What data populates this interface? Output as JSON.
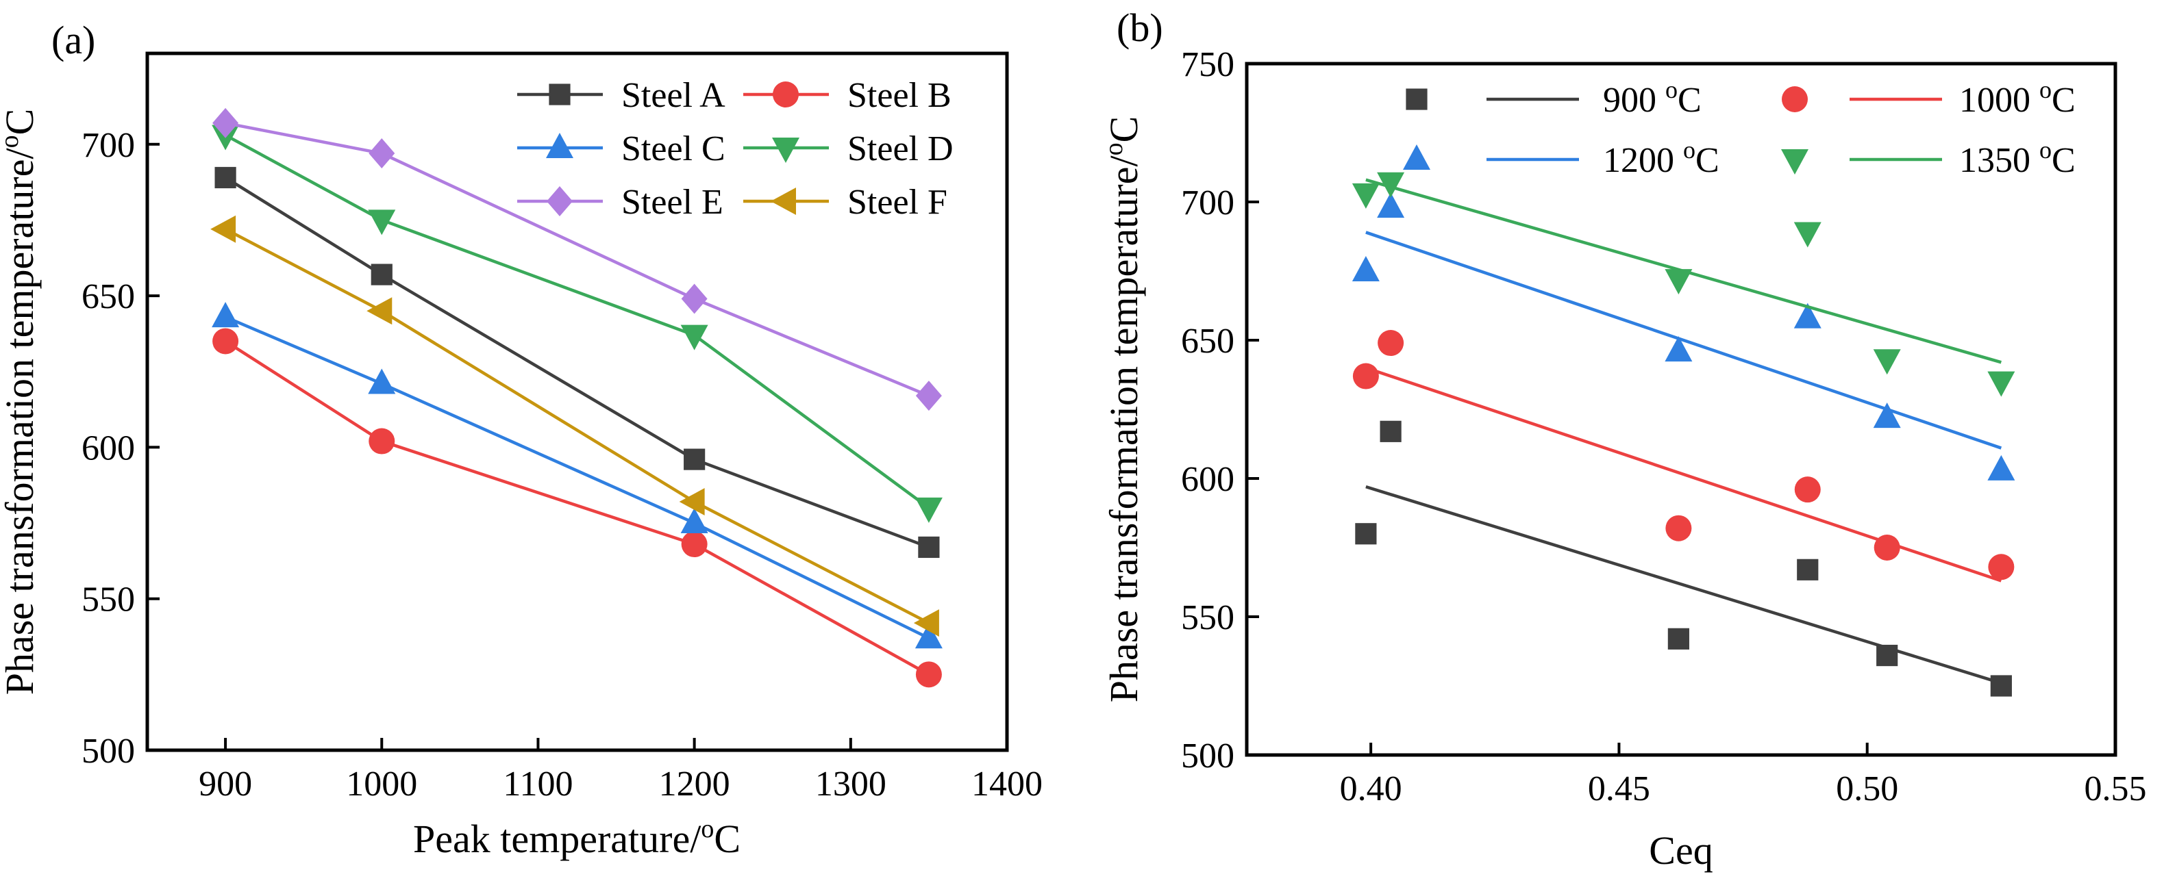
{
  "chart_data": [
    {
      "type": "line",
      "panel_label": "(a)",
      "xlabel": "Peak temperature/",
      "ylabel": "Phase transformation temperature/",
      "unit_sup": "o",
      "unit_tail": "C",
      "xlim": [
        850,
        1400
      ],
      "ylim": [
        500,
        730
      ],
      "xticks": [
        900,
        1000,
        1100,
        1200,
        1300,
        1400
      ],
      "yticks": [
        500,
        550,
        600,
        650,
        700
      ],
      "x": [
        900,
        1000,
        1200,
        1350
      ],
      "legend_position": "top-right",
      "series": [
        {
          "name": "Steel A",
          "marker": "square",
          "color": "#3f3f3f",
          "values": [
            689,
            657,
            596,
            567
          ]
        },
        {
          "name": "Steel B",
          "marker": "circle",
          "color": "#ec4141",
          "values": [
            635,
            602,
            568,
            525
          ]
        },
        {
          "name": "Steel C",
          "marker": "triangle-up",
          "color": "#2f7fe0",
          "values": [
            643,
            621,
            575,
            537
          ]
        },
        {
          "name": "Steel D",
          "marker": "triangle-down",
          "color": "#3aa95a",
          "values": [
            703,
            675,
            637,
            580
          ]
        },
        {
          "name": "Steel E",
          "marker": "diamond",
          "color": "#b07de0",
          "values": [
            707,
            697,
            649,
            617
          ]
        },
        {
          "name": "Steel F",
          "marker": "triangle-left",
          "color": "#c7950f",
          "values": [
            672,
            645,
            582,
            542
          ]
        }
      ]
    },
    {
      "type": "scatter",
      "panel_label": "(b)",
      "xlabel": "Ceq",
      "ylabel": "Phase transformation temperature/",
      "unit_sup": "o",
      "unit_tail": "C",
      "xlim": [
        0.375,
        0.55
      ],
      "ylim": [
        500,
        750
      ],
      "xticks": [
        "0.40",
        "0.45",
        "0.50",
        "0.55"
      ],
      "yticks": [
        500,
        550,
        600,
        650,
        700,
        750
      ],
      "x": [
        0.399,
        0.404,
        0.462,
        0.488,
        0.504,
        0.527
      ],
      "legend_position": "top",
      "series": [
        {
          "name": "900 ",
          "marker": "square",
          "color": "#3f3f3f",
          "values": [
            580,
            617,
            542,
            567,
            536,
            525
          ],
          "fit": [
            [
              0.399,
              597
            ],
            [
              0.527,
              526
            ]
          ]
        },
        {
          "name": "1000 ",
          "marker": "circle",
          "color": "#ec4141",
          "values": [
            637,
            649,
            582,
            596,
            575,
            568
          ],
          "fit": [
            [
              0.399,
              640
            ],
            [
              0.527,
              563
            ]
          ]
        },
        {
          "name": "1200 ",
          "marker": "triangle-up",
          "color": "#2f7fe0",
          "values": [
            675,
            698,
            646,
            658,
            622,
            603
          ],
          "fit": [
            [
              0.399,
              689
            ],
            [
              0.527,
              611
            ]
          ]
        },
        {
          "name": "1350 ",
          "marker": "triangle-down",
          "color": "#3aa95a",
          "values": [
            703,
            707,
            672,
            689,
            643,
            635
          ],
          "fit": [
            [
              0.399,
              708
            ],
            [
              0.527,
              642
            ]
          ]
        }
      ]
    }
  ]
}
